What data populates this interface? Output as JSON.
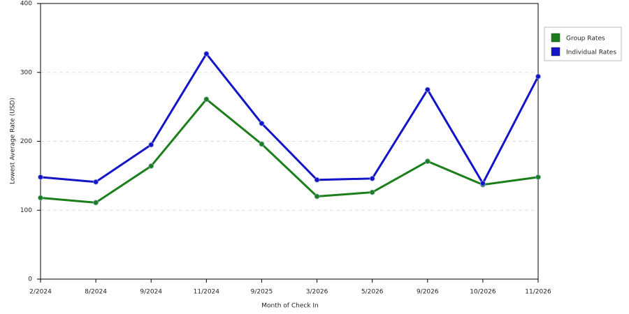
{
  "chart_data": {
    "type": "line",
    "x_label": "Month of Check In",
    "y_label": "Lowest Average Rate (USD)",
    "categories": [
      "2/2024",
      "8/2024",
      "9/2024",
      "11/2024",
      "9/2025",
      "3/2026",
      "5/2026",
      "9/2026",
      "10/2026",
      "11/2026"
    ],
    "series": [
      {
        "name": "Group Rates",
        "color": "#1a7f1a",
        "values": [
          118,
          111,
          164,
          261,
          196,
          120,
          126,
          171,
          137,
          148
        ]
      },
      {
        "name": "Individual Rates",
        "color": "#1414c8",
        "values": [
          148,
          141,
          195,
          327,
          226,
          144,
          146,
          275,
          139,
          294
        ]
      }
    ],
    "ylim": [
      0,
      400
    ],
    "yticks": [
      0,
      100,
      200,
      300,
      400
    ],
    "grid": true,
    "legend": "right"
  }
}
